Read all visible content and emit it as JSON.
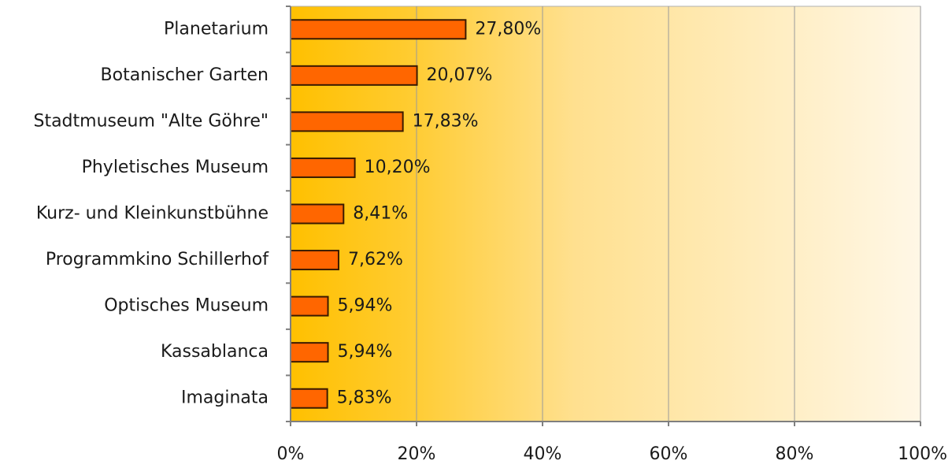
{
  "chart_data": {
    "type": "bar",
    "orientation": "horizontal",
    "categories": [
      "Planetarium",
      "Botanischer Garten",
      "Stadtmuseum \"Alte Göhre\"",
      "Phyletisches Museum",
      "Kurz- und Kleinkunstbühne",
      "Programmkino Schillerhof",
      "Optisches Museum",
      "Kassablanca",
      "Imaginata"
    ],
    "values": [
      27.8,
      20.07,
      17.83,
      10.2,
      8.41,
      7.62,
      5.94,
      5.94,
      5.83
    ],
    "value_labels": [
      "27,80%",
      "20,07%",
      "17,83%",
      "10,20%",
      "8,41%",
      "7,62%",
      "5,94%",
      "5,94%",
      "5,83%"
    ],
    "xlim": [
      0,
      100
    ],
    "xticks": [
      0,
      20,
      40,
      60,
      80,
      100
    ],
    "xtick_labels": [
      "0%",
      "20%",
      "40%",
      "60%",
      "80%",
      "100%"
    ],
    "title": "",
    "xlabel": "",
    "ylabel": "",
    "grid": true,
    "legend": "none",
    "colors": {
      "bar_fill": "#FF6600",
      "bar_stroke": "#3a1a00",
      "plot_bg_start": "#FFC000",
      "plot_bg_end": "#FFF7E6",
      "grid": "#9a9a9a",
      "axis": "#7f7f7f"
    }
  }
}
